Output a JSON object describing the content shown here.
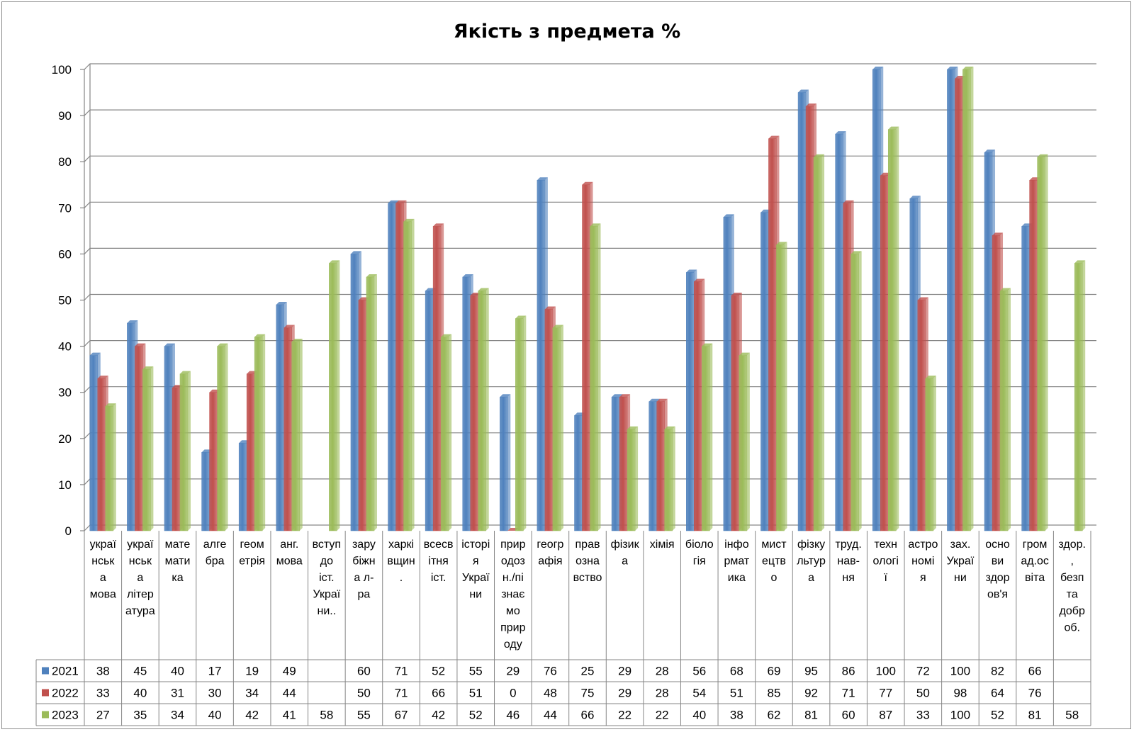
{
  "chart_data": {
    "type": "bar",
    "title": "Якість з предмета %",
    "ylim": [
      0,
      100
    ],
    "yticks": [
      0,
      10,
      20,
      30,
      40,
      50,
      60,
      70,
      80,
      90,
      100
    ],
    "grid": true,
    "legend_placement": "data-table-left",
    "categories": [
      [
        "украї",
        "нськ",
        "а",
        "мова"
      ],
      [
        "украї",
        "нськ",
        "а",
        "літер",
        "атура"
      ],
      [
        "мате",
        "мати",
        "ка"
      ],
      [
        "алге",
        "бра"
      ],
      [
        "геом",
        "етрія"
      ],
      [
        "анг.",
        "мова"
      ],
      [
        "вступ",
        "до",
        "іст.",
        "Украї",
        "ни.."
      ],
      [
        "зару",
        "біжн",
        "а л-",
        "ра"
      ],
      [
        "харкі",
        "вщин",
        "."
      ],
      [
        "всесв",
        "ітня",
        "іст."
      ],
      [
        "історі",
        "я",
        "Украї",
        "ни"
      ],
      [
        "прир",
        "одоз",
        "н./пі",
        "знає",
        "мо",
        "прир",
        "оду"
      ],
      [
        "геогр",
        "афія"
      ],
      [
        "прав",
        "озна",
        "вство"
      ],
      [
        "фізик",
        "а"
      ],
      [
        "хімія"
      ],
      [
        "біоло",
        "гія"
      ],
      [
        "інфо",
        "рмат",
        "ика"
      ],
      [
        "мист",
        "ецтв",
        "о"
      ],
      [
        "фізку",
        "льтур",
        "а"
      ],
      [
        "труд.",
        "нав-",
        "ня"
      ],
      [
        "техн",
        "ологі",
        "ї"
      ],
      [
        "астро",
        "номі",
        "я"
      ],
      [
        "зах.",
        "Украї",
        "ни"
      ],
      [
        "осно",
        "ви",
        "здор",
        "ов'я"
      ],
      [
        "гром",
        "ад.ос",
        "віта"
      ],
      [
        "здор.",
        ",",
        "безп",
        "та",
        "добр",
        "об."
      ]
    ],
    "series": [
      {
        "name": "2021",
        "color": "#4F81BD",
        "values": [
          38,
          45,
          40,
          17,
          19,
          49,
          null,
          60,
          71,
          52,
          55,
          29,
          76,
          25,
          29,
          28,
          56,
          68,
          69,
          95,
          86,
          100,
          72,
          100,
          82,
          66,
          null
        ]
      },
      {
        "name": "2022",
        "color": "#C0504D",
        "values": [
          33,
          40,
          31,
          30,
          34,
          44,
          null,
          50,
          71,
          66,
          51,
          0,
          48,
          75,
          29,
          28,
          54,
          51,
          85,
          92,
          71,
          77,
          50,
          98,
          64,
          76,
          null
        ]
      },
      {
        "name": "2023",
        "color": "#9BBB59",
        "values": [
          27,
          35,
          34,
          40,
          42,
          41,
          58,
          55,
          67,
          42,
          52,
          46,
          44,
          66,
          22,
          22,
          40,
          38,
          62,
          81,
          60,
          87,
          33,
          100,
          52,
          81,
          58
        ]
      }
    ]
  }
}
